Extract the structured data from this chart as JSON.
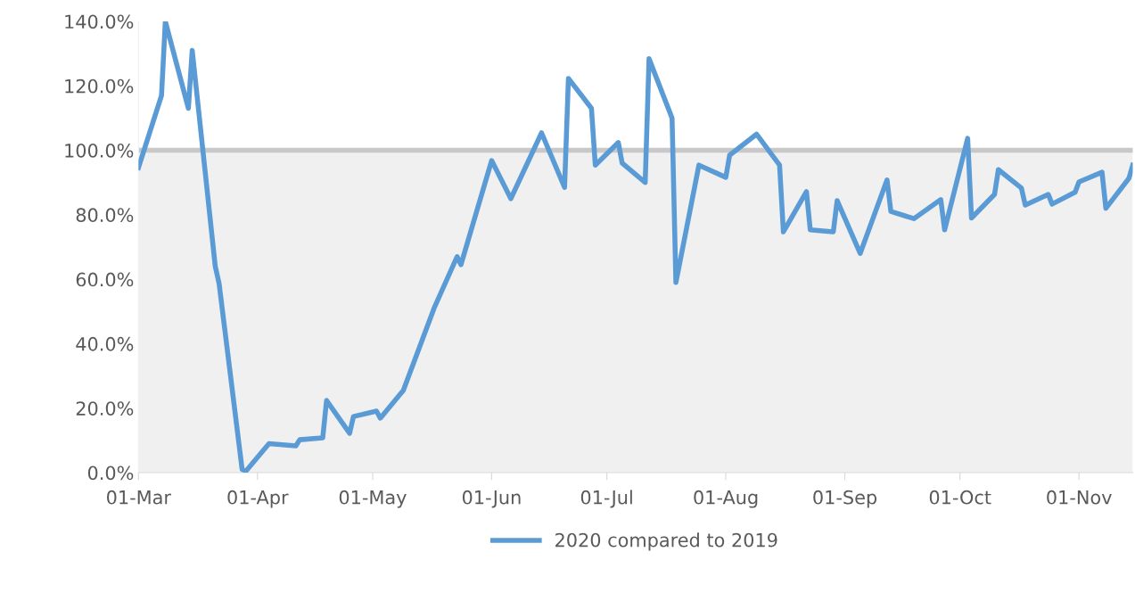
{
  "chart_data": {
    "type": "line",
    "x": [
      "2020-03-01",
      "2020-03-07",
      "2020-03-08",
      "2020-03-14",
      "2020-03-15",
      "2020-03-21",
      "2020-03-22",
      "2020-03-28",
      "2020-03-29",
      "2020-04-04",
      "2020-04-11",
      "2020-04-12",
      "2020-04-18",
      "2020-04-19",
      "2020-04-25",
      "2020-04-26",
      "2020-05-02",
      "2020-05-03",
      "2020-05-09",
      "2020-05-17",
      "2020-05-23",
      "2020-05-24",
      "2020-06-01",
      "2020-06-06",
      "2020-06-14",
      "2020-06-20",
      "2020-06-21",
      "2020-06-27",
      "2020-06-28",
      "2020-07-04",
      "2020-07-05",
      "2020-07-11",
      "2020-07-12",
      "2020-07-18",
      "2020-07-19",
      "2020-07-25",
      "2020-08-01",
      "2020-08-02",
      "2020-08-09",
      "2020-08-15",
      "2020-08-16",
      "2020-08-22",
      "2020-08-23",
      "2020-08-29",
      "2020-08-30",
      "2020-09-05",
      "2020-09-12",
      "2020-09-13",
      "2020-09-19",
      "2020-09-26",
      "2020-09-27",
      "2020-10-03",
      "2020-10-04",
      "2020-10-10",
      "2020-10-11",
      "2020-10-17",
      "2020-10-18",
      "2020-10-24",
      "2020-10-25",
      "2020-10-31",
      "2020-11-01",
      "2020-11-07",
      "2020-11-08",
      "2020-11-14",
      "2020-11-15"
    ],
    "series": [
      {
        "name": "2020 compared to 2019",
        "color": "#5b9bd5",
        "values": [
          94.6,
          117,
          140,
          113,
          131,
          64,
          58.7,
          1,
          0.5,
          9,
          8.3,
          10.2,
          10.8,
          22.4,
          12.2,
          17.4,
          19.1,
          16.9,
          25.5,
          51,
          67,
          64.5,
          96.8,
          85,
          105.4,
          88.5,
          122.3,
          113,
          95.4,
          102.4,
          96,
          90,
          128.4,
          110,
          59,
          95.4,
          91.6,
          98.5,
          105,
          95.4,
          74.7,
          87.2,
          75.3,
          74.7,
          84.4,
          68,
          90.8,
          81,
          78.8,
          84.7,
          75.3,
          103.7,
          79,
          86.3,
          94,
          88.3,
          83,
          86.3,
          83.3,
          87,
          90.2,
          93.2,
          82,
          91.3,
          95.4
        ]
      }
    ],
    "xlim": [
      "2020-03-01",
      "2020-11-15"
    ],
    "xticks": [
      {
        "value": "2020-03-01",
        "label": "01-Mar"
      },
      {
        "value": "2020-04-01",
        "label": "01-Apr"
      },
      {
        "value": "2020-05-01",
        "label": "01-May"
      },
      {
        "value": "2020-06-01",
        "label": "01-Jun"
      },
      {
        "value": "2020-07-01",
        "label": "01-Jul"
      },
      {
        "value": "2020-08-01",
        "label": "01-Aug"
      },
      {
        "value": "2020-09-01",
        "label": "01-Sep"
      },
      {
        "value": "2020-10-01",
        "label": "01-Oct"
      },
      {
        "value": "2020-11-01",
        "label": "01-Nov"
      }
    ],
    "ylim": [
      0,
      140
    ],
    "yticks": [
      {
        "value": 0,
        "label": "0.0%"
      },
      {
        "value": 20,
        "label": "20.0%"
      },
      {
        "value": 40,
        "label": "40.0%"
      },
      {
        "value": 60,
        "label": "60.0%"
      },
      {
        "value": 80,
        "label": "80.0%"
      },
      {
        "value": 100,
        "label": "100.0%"
      },
      {
        "value": 120,
        "label": "120.0%"
      },
      {
        "value": 140,
        "label": "140.0%"
      }
    ],
    "ref_lines": [
      {
        "axis": "y",
        "value": 100,
        "color": "#c8c8c8"
      }
    ],
    "bands": [
      {
        "axis": "y",
        "from": 0,
        "to": 100,
        "color": "#f0f0f0"
      }
    ],
    "grid": false,
    "legend": "bottom",
    "marker": "none",
    "line_style": "solid"
  }
}
